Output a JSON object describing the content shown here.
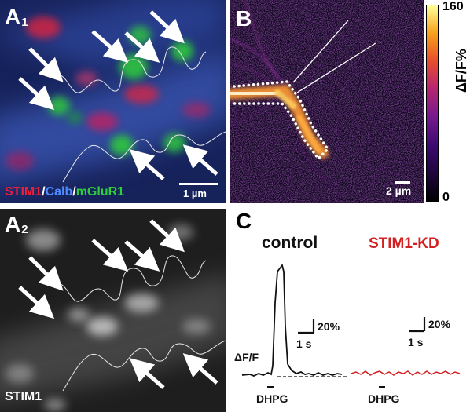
{
  "panels": {
    "a1": {
      "letter": "A",
      "sub": "1",
      "stain_stim1": "STIM1",
      "sep1": "/",
      "stain_calb": "Calb",
      "sep2": "/",
      "stain_mglur1": "mGluR1",
      "scale_label": "1 µm"
    },
    "a2": {
      "letter": "A",
      "sub": "2",
      "channel": "STIM1"
    },
    "b": {
      "letter": "B",
      "scale_label": "2 µm",
      "colorbar_max": "160",
      "colorbar_min": "0",
      "colorbar_label": "ΔF/F%"
    },
    "c": {
      "letter": "C",
      "control_label": "control",
      "kd_label": "STIM1-KD",
      "y_axis_label": "ΔF/F",
      "scale_y": "20%",
      "scale_x": "1 s",
      "stimulus": "DHPG"
    }
  },
  "colors": {
    "stim1": "#e8203a",
    "calb": "#3d7df0",
    "mglur1": "#2ecf3a",
    "trace_control": "#111111",
    "trace_kd": "#d42020"
  }
}
